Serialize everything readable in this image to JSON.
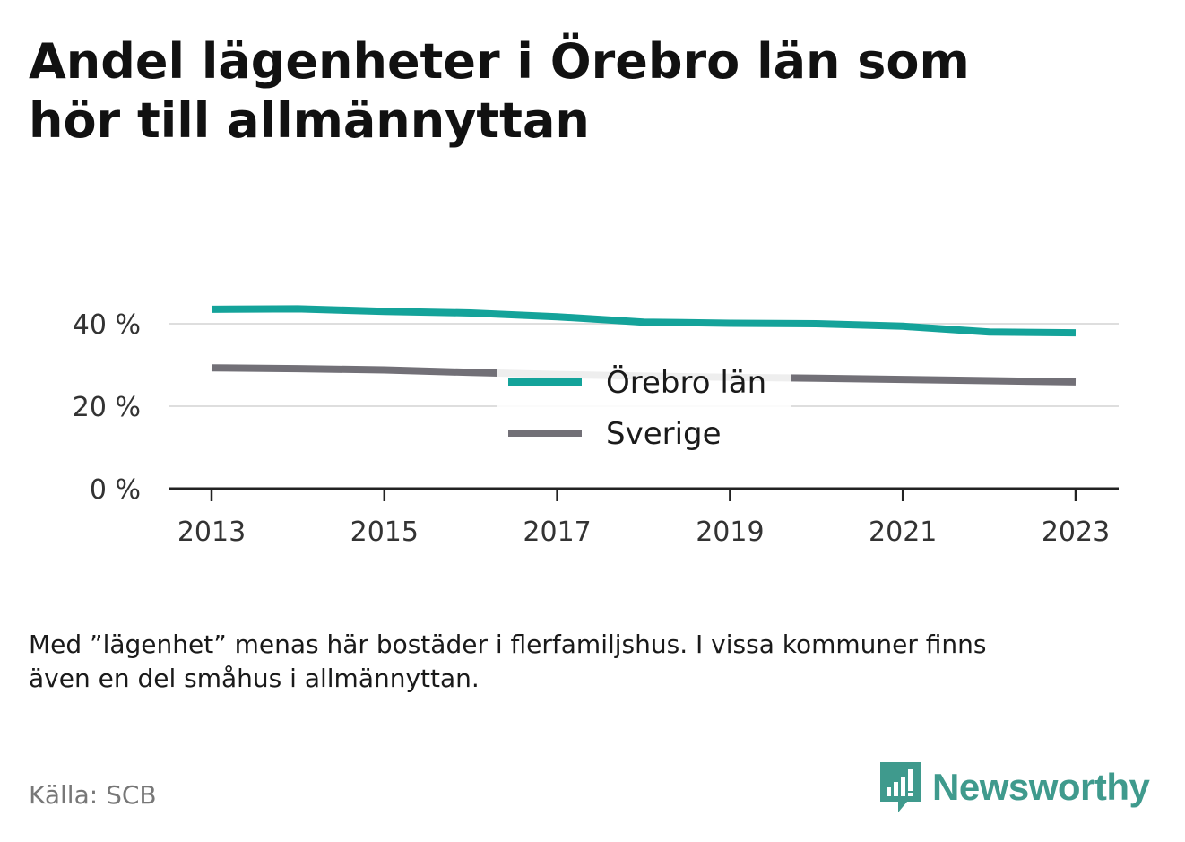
{
  "header": {
    "title_line1": "Andel lägenheter i Örebro län som",
    "title_line2": "hör till allmännyttan"
  },
  "chart_data": {
    "type": "line",
    "title": "Andel lägenheter i Örebro län som hör till allmännyttan",
    "x": [
      2013,
      2014,
      2015,
      2016,
      2017,
      2018,
      2019,
      2020,
      2021,
      2022,
      2023
    ],
    "x_tick_labels": [
      "2013",
      "2015",
      "2017",
      "2019",
      "2021",
      "2023"
    ],
    "y_tick_labels": [
      "0 %",
      "20 %",
      "40 %"
    ],
    "ylim": [
      0,
      50
    ],
    "y_unit": "%",
    "grid": true,
    "legend_position": "center",
    "series": [
      {
        "name": "Örebro län",
        "color": "#14a39a",
        "values": [
          43.5,
          43.6,
          43.0,
          42.6,
          41.7,
          40.4,
          40.1,
          40.0,
          39.4,
          38.0,
          37.8
        ]
      },
      {
        "name": "Sverige",
        "color": "#727077",
        "values": [
          29.3,
          29.1,
          28.8,
          28.2,
          27.7,
          27.3,
          27.0,
          26.8,
          26.5,
          26.2,
          25.9
        ]
      }
    ]
  },
  "footer": {
    "note_line1": "Med ”lägenhet” menas här bostäder i flerfamiljshus. I vissa kommuner finns",
    "note_line2": "även en del småhus i allmännyttan.",
    "source": "Källa: SCB",
    "brand": "Newsworthy",
    "brand_icon": "newsworthy-logo-icon",
    "brand_color": "#3f9a8d"
  }
}
